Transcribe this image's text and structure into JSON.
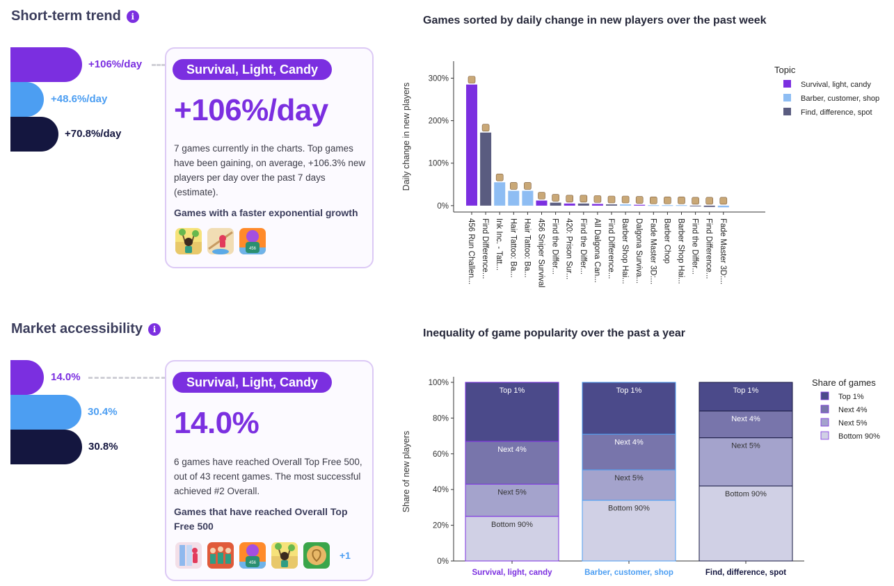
{
  "trend": {
    "title": "Short-term trend",
    "bars": [
      {
        "value_text": "+106%/day",
        "color": "#7b2fe0"
      },
      {
        "value_text": "+48.6%/day",
        "color": "#4c9ef2"
      },
      {
        "value_text": "+70.8%/day",
        "color": "#14163f"
      }
    ],
    "card": {
      "tag": "Survival, Light, Candy",
      "big_value": "+106%/day",
      "description": "7 games currently in the charts. Top games have been gaining, on average, +106.3% new players per day over the past 7 days (estimate).",
      "subheading": "Games with a faster exponential growth",
      "icons": [
        "game-icon-tree-character",
        "game-icon-rope-climb",
        "game-icon-456-player"
      ]
    }
  },
  "access": {
    "title": "Market accessibility",
    "bars": [
      {
        "value_text": "14.0%",
        "color": "#7b2fe0"
      },
      {
        "value_text": "30.4%",
        "color": "#4c9ef2"
      },
      {
        "value_text": "30.8%",
        "color": "#14163f"
      }
    ],
    "card": {
      "tag": "Survival, Light, Candy",
      "big_value": "14.0%",
      "description": "6 games have reached Overall Top Free 500, out of 43 recent games. The most successful achieved #2 Overall.",
      "subheading": "Games that have reached Overall Top Free 500",
      "icons": [
        "game-icon-run-challenge",
        "game-icon-crowd",
        "game-icon-456-player",
        "game-icon-tree-character",
        "game-icon-dalgona-candy"
      ],
      "more": "+1"
    }
  },
  "chart_data": [
    {
      "type": "bar",
      "title": "Games sorted by daily change in new players over the past week",
      "ylabel": "Daily change in new players",
      "ylim": [
        -15,
        340
      ],
      "yticks": [
        "0%",
        "100%",
        "200%",
        "300%"
      ],
      "ytick_values": [
        0,
        100,
        200,
        300
      ],
      "legend_title": "Topic",
      "legend_position": "top-right",
      "series_names": [
        "Survival, light, candy",
        "Barber, customer, shop",
        "Find, difference, spot"
      ],
      "series_colors": [
        "#7b2fe0",
        "#8ebdf3",
        "#5a5c80"
      ],
      "categories": [
        "456 Run Challen...",
        "Find Difference...",
        "Ink Inc. - Tatt...",
        "Hair Tattoo: Ba...",
        "Hair Tattoo: Ba...",
        "456 Sniper Survival",
        "Find the Differ...",
        "420: Prison Sur...",
        "Find the Differ...",
        "All Dalgona Can...",
        "Find Difference...",
        "Barber Shop Hai...",
        "Dalgona Surviva...",
        "Fade Master 3D:...",
        "Barber Chop",
        "Barber Shop Hai...",
        "Find the Differ...",
        "Find Difference...",
        "Fade Master 3D:..."
      ],
      "values": [
        285,
        172,
        55,
        35,
        35,
        12,
        7,
        5,
        5,
        4,
        3,
        3,
        2,
        1,
        1,
        1,
        0,
        -3,
        -4
      ],
      "series_index": [
        0,
        2,
        1,
        1,
        1,
        0,
        2,
        0,
        2,
        0,
        2,
        1,
        0,
        1,
        1,
        1,
        2,
        2,
        1
      ]
    },
    {
      "type": "bar",
      "stacked": true,
      "title": "Inequality of game popularity over the past a year",
      "ylabel": "Share of new players",
      "ylim": [
        0,
        100
      ],
      "yticks": [
        "0%",
        "20%",
        "40%",
        "60%",
        "80%",
        "100%"
      ],
      "ytick_values": [
        0,
        20,
        40,
        60,
        80,
        100
      ],
      "legend_title": "Share of games",
      "legend_position": "top-right",
      "categories": [
        "Survival, light, candy",
        "Barber, customer, shop",
        "Find, difference, spot"
      ],
      "category_colors": [
        "#7b2fe0",
        "#4c9ef2",
        "#14163f"
      ],
      "series": [
        {
          "name": "Bottom 90%",
          "values": [
            25,
            34,
            42
          ],
          "color": "#d0d0e5"
        },
        {
          "name": "Next 5%",
          "values": [
            18,
            17,
            27
          ],
          "color": "#a4a3cc"
        },
        {
          "name": "Next 4%",
          "values": [
            24,
            20,
            15
          ],
          "color": "#7875ab"
        },
        {
          "name": "Top 1%",
          "values": [
            33,
            29,
            16
          ],
          "color": "#4b4a8a"
        }
      ]
    }
  ]
}
